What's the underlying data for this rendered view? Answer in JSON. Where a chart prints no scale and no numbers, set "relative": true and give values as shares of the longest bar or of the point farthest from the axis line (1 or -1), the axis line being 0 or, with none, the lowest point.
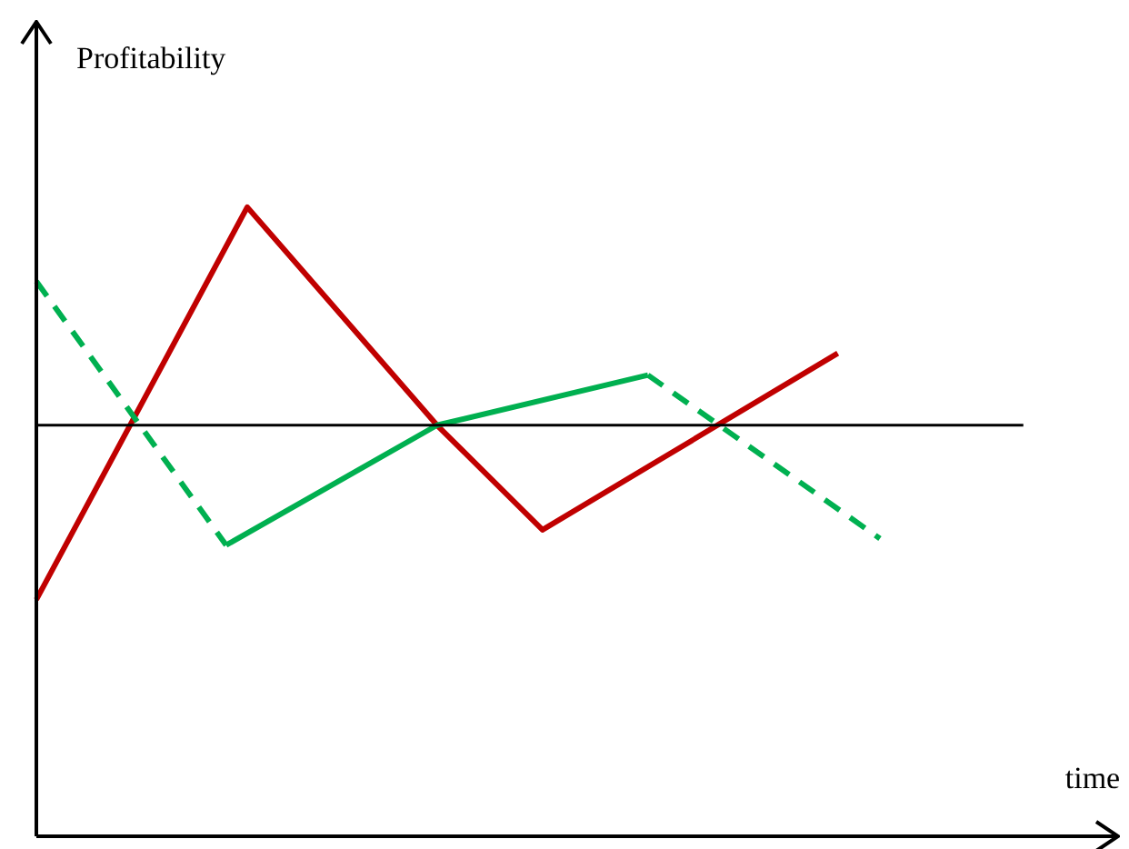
{
  "chart_data": {
    "type": "line",
    "relative": true,
    "ylabel": "Profitability",
    "annotations": [
      "time"
    ],
    "marker": "none",
    "categories": [
      null,
      null,
      null,
      null,
      null,
      null,
      null,
      null,
      null,
      null,
      null,
      null,
      null,
      null,
      null,
      null,
      null,
      null,
      null,
      null,
      null,
      null,
      null,
      null,
      null,
      null,
      null,
      null,
      null,
      null,
      null,
      null,
      null,
      null,
      null,
      null,
      null,
      null,
      null,
      null,
      null,
      null,
      null,
      null,
      null,
      null,
      null,
      null,
      null,
      null,
      null
    ],
    "series": [
      {
        "color": "#00b050",
        "line_style": "dashed",
        "values": [
          0.66,
          null,
          null,
          null,
          null,
          null,
          null,
          null,
          null,
          -0.55,
          null,
          null,
          null,
          null,
          null,
          null,
          null,
          null,
          null,
          null,
          null,
          null,
          null,
          null,
          null,
          null,
          null,
          null,
          null,
          null,
          null,
          null,
          null,
          null,
          null,
          null,
          null,
          null,
          null,
          null,
          null,
          null,
          null,
          null,
          null,
          null,
          null,
          null,
          null,
          null,
          null
        ]
      },
      {
        "color": "#00b050",
        "line_style": "solid",
        "values": [
          null,
          null,
          null,
          null,
          null,
          null,
          null,
          null,
          null,
          -0.55,
          null,
          null,
          null,
          null,
          null,
          null,
          null,
          null,
          null,
          0,
          null,
          null,
          null,
          null,
          null,
          null,
          null,
          null,
          null,
          0.23,
          null,
          null,
          null,
          null,
          null,
          null,
          null,
          null,
          null,
          null,
          null,
          null,
          null,
          null,
          null,
          null,
          null,
          null,
          null,
          null,
          null
        ]
      },
      {
        "color": "#00b050",
        "line_style": "dashed",
        "values": [
          null,
          null,
          null,
          null,
          null,
          null,
          null,
          null,
          null,
          null,
          null,
          null,
          null,
          null,
          null,
          null,
          null,
          null,
          null,
          null,
          null,
          null,
          null,
          null,
          null,
          null,
          null,
          null,
          null,
          0.23,
          null,
          null,
          null,
          null,
          null,
          null,
          null,
          null,
          null,
          null,
          -0.52,
          null,
          null,
          null,
          null,
          null,
          null,
          null,
          null,
          null,
          null
        ]
      },
      {
        "color": "#c00000",
        "line_style": "solid",
        "values": [
          -0.8,
          null,
          null,
          null,
          null,
          null,
          null,
          null,
          null,
          null,
          1,
          null,
          null,
          null,
          null,
          null,
          null,
          null,
          null,
          0,
          null,
          null,
          null,
          null,
          -0.48,
          null,
          null,
          null,
          null,
          null,
          null,
          null,
          null,
          null,
          null,
          null,
          null,
          null,
          0.33,
          null,
          null,
          null,
          null,
          null,
          null,
          null,
          null,
          null,
          null,
          null,
          null
        ]
      }
    ]
  }
}
